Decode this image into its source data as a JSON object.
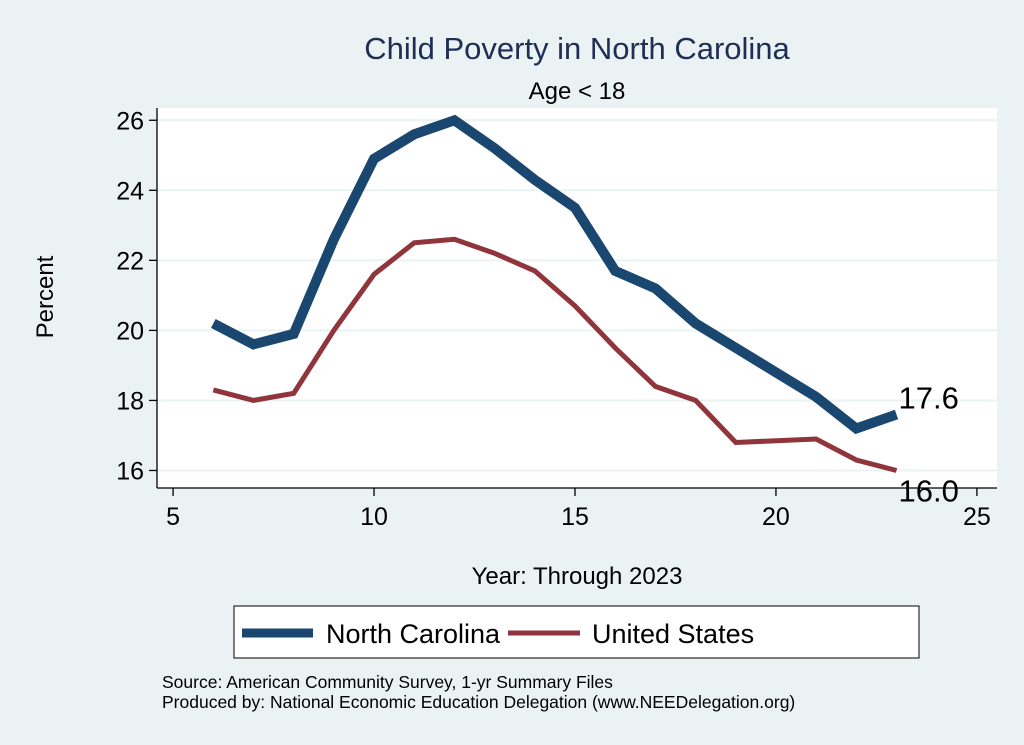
{
  "chart_data": {
    "type": "line",
    "title": "Child Poverty in North Carolina",
    "subtitle": "Age < 18",
    "xlabel": "Year: Through 2023",
    "ylabel": "Percent",
    "xlim": [
      4.6,
      25.5
    ],
    "ylim": [
      15.5,
      26.35
    ],
    "xticks": [
      5,
      10,
      15,
      20,
      25
    ],
    "yticks": [
      16,
      18,
      20,
      22,
      24,
      26
    ],
    "grid": true,
    "legend_position": "bottom",
    "series": [
      {
        "name": "North Carolina",
        "color": "#1a476f",
        "x": [
          6,
          7,
          8,
          9,
          10,
          11,
          12,
          13,
          14,
          15,
          16,
          17,
          18,
          19,
          21,
          22,
          23
        ],
        "values": [
          20.2,
          19.6,
          19.9,
          22.6,
          24.9,
          25.6,
          26.0,
          25.2,
          24.3,
          23.5,
          21.7,
          21.2,
          20.2,
          19.5,
          18.1,
          17.2,
          17.6
        ],
        "end_label": "17.6"
      },
      {
        "name": "United States",
        "color": "#90353b",
        "x": [
          6,
          7,
          8,
          9,
          10,
          11,
          12,
          13,
          14,
          15,
          16,
          17,
          18,
          19,
          21,
          22,
          23
        ],
        "values": [
          18.3,
          18.0,
          18.2,
          20.0,
          21.6,
          22.5,
          22.6,
          22.2,
          21.7,
          20.7,
          19.5,
          18.4,
          18.0,
          16.8,
          16.9,
          16.3,
          16.0
        ],
        "end_label": "16.0"
      }
    ]
  },
  "notes": {
    "source": "Source: American Community Survey, 1-yr Summary Files",
    "produced_by": "Produced by: National Economic Education Delegation (www.NEEDelegation.org)"
  }
}
